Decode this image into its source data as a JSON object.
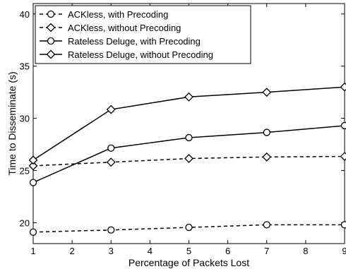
{
  "chart_data": {
    "type": "line",
    "xlabel": "Percentage of Packets Lost",
    "ylabel": "Time to Disseminate (s)",
    "xlim": [
      1,
      9
    ],
    "ylim": [
      18,
      41
    ],
    "xticks": [
      1,
      2,
      3,
      4,
      5,
      6,
      7,
      8,
      9
    ],
    "yticks": [
      20,
      25,
      30,
      35,
      40
    ],
    "grid": false,
    "legend_position": "top-left",
    "x": [
      1,
      3,
      5,
      7,
      9
    ],
    "series": [
      {
        "name": "ACKless, with Precoding",
        "values": [
          19.1,
          19.3,
          19.55,
          19.8,
          19.8
        ],
        "marker": "circle",
        "linestyle": "dashed",
        "color": "#000000"
      },
      {
        "name": "ACKless, without Precoding",
        "values": [
          25.45,
          25.8,
          26.15,
          26.3,
          26.35
        ],
        "marker": "diamond",
        "linestyle": "dashed",
        "color": "#000000"
      },
      {
        "name": "Rateless Deluge, with Precoding",
        "values": [
          23.85,
          27.15,
          28.15,
          28.65,
          29.3
        ],
        "marker": "circle",
        "linestyle": "solid",
        "color": "#000000"
      },
      {
        "name": "Rateless Deluge, without Precoding",
        "values": [
          26.0,
          30.85,
          32.05,
          32.5,
          33.0
        ],
        "marker": "diamond",
        "linestyle": "solid",
        "color": "#000000"
      }
    ]
  }
}
